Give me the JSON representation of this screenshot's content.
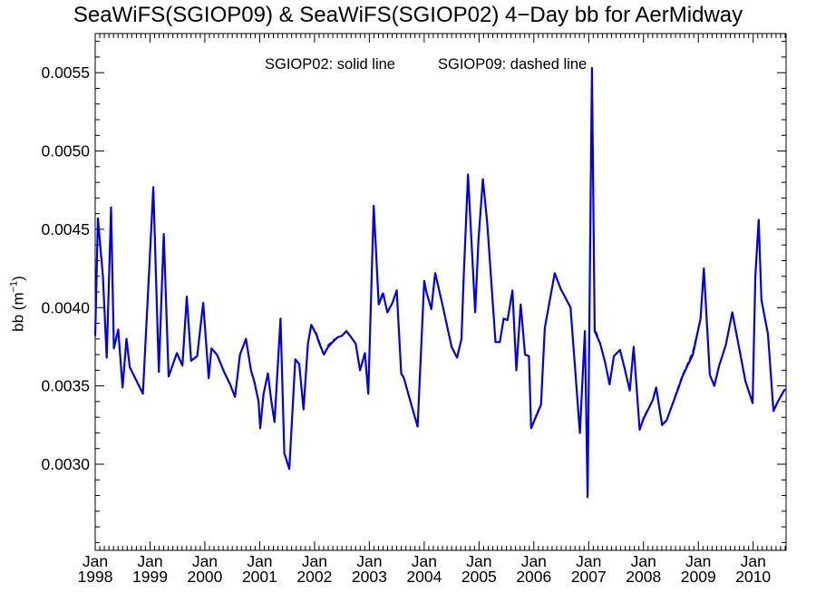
{
  "chart_data": {
    "type": "line",
    "title": "SeaWiFS(SGIOP09) & SeaWiFS(SGIOP02) 4−Day bb for AerMidway",
    "annotation_left": "SGIOP02: solid line",
    "annotation_right": "SGIOP09: dashed line",
    "ylabel_text": "bb (m",
    "ylabel_exp": "−1",
    "ylabel_close": ")",
    "xlim": [
      1998.0,
      2010.6
    ],
    "ylim": [
      0.00245,
      0.00575
    ],
    "yticks": [
      0.003,
      0.0035,
      0.004,
      0.0045,
      0.005,
      0.0055
    ],
    "ytick_labels": [
      "0.0030",
      "0.0035",
      "0.0040",
      "0.0045",
      "0.0050",
      "0.0055"
    ],
    "xtick_years": [
      1998,
      1999,
      2000,
      2001,
      2002,
      2003,
      2004,
      2005,
      2006,
      2007,
      2008,
      2009,
      2010
    ],
    "xtick_month_label": "Jan",
    "xtick_year_labels": [
      "1998",
      "1999",
      "2000",
      "2001",
      "2002",
      "2003",
      "2004",
      "2005",
      "2006",
      "2007",
      "2008",
      "2009",
      "2010"
    ],
    "colors": {
      "series": "#0000ee",
      "axis": "#000000"
    },
    "series": [
      {
        "name": "SGIOP02",
        "style": "solid",
        "x": [
          1998.0,
          1998.05,
          1998.14,
          1998.21,
          1998.29,
          1998.34,
          1998.42,
          1998.5,
          1998.57,
          1998.63,
          1998.73,
          1998.87,
          1998.99,
          1999.06,
          1999.16,
          1999.25,
          1999.34,
          1999.49,
          1999.59,
          1999.67,
          1999.75,
          1999.86,
          1999.97,
          2000.07,
          2000.12,
          2000.22,
          2000.35,
          2000.46,
          2000.55,
          2000.64,
          2000.75,
          2000.84,
          2000.9,
          2000.98,
          2001.01,
          2001.07,
          2001.15,
          2001.21,
          2001.27,
          2001.38,
          2001.45,
          2001.54,
          2001.65,
          2001.72,
          2001.8,
          2001.88,
          2001.94,
          2002.03,
          2002.09,
          2002.17,
          2002.25,
          2002.33,
          2002.42,
          2002.5,
          2002.58,
          2002.67,
          2002.75,
          2002.83,
          2002.92,
          2002.98,
          2003.08,
          2003.17,
          2003.25,
          2003.33,
          2003.42,
          2003.5,
          2003.58,
          2003.63,
          2003.75,
          2003.88,
          2004.0,
          2004.04,
          2004.13,
          2004.2,
          2004.32,
          2004.5,
          2004.6,
          2004.68,
          2004.72,
          2004.8,
          2004.93,
          2004.99,
          2005.07,
          2005.15,
          2005.3,
          2005.38,
          2005.45,
          2005.52,
          2005.61,
          2005.68,
          2005.76,
          2005.84,
          2005.91,
          2005.95,
          2006.06,
          2006.13,
          2006.2,
          2006.38,
          2006.49,
          2006.67,
          2006.84,
          2006.93,
          2006.98,
          2007.06,
          2007.11,
          2007.21,
          2007.3,
          2007.38,
          2007.46,
          2007.57,
          2007.65,
          2007.75,
          2007.82,
          2007.93,
          2008.0,
          2008.17,
          2008.23,
          2008.34,
          2008.42,
          2008.63,
          2008.71,
          2008.79,
          2008.9,
          2009.04,
          2009.1,
          2009.21,
          2009.29,
          2009.38,
          2009.5,
          2009.62,
          2009.74,
          2009.86,
          2009.99,
          2010.04,
          2010.1,
          2010.15,
          2010.27,
          2010.37,
          2010.45,
          2010.53,
          2010.58
        ],
        "y": [
          0.00382,
          0.00457,
          0.0042,
          0.00368,
          0.00464,
          0.00374,
          0.00386,
          0.00349,
          0.0038,
          0.00362,
          0.00355,
          0.00345,
          0.00428,
          0.00477,
          0.00359,
          0.00447,
          0.00356,
          0.00371,
          0.00363,
          0.00407,
          0.00366,
          0.00369,
          0.00403,
          0.00355,
          0.00374,
          0.0037,
          0.00359,
          0.00351,
          0.00343,
          0.0037,
          0.0038,
          0.0036,
          0.00353,
          0.0034,
          0.00323,
          0.00345,
          0.00358,
          0.00341,
          0.00327,
          0.00393,
          0.00307,
          0.00297,
          0.00367,
          0.00364,
          0.00335,
          0.00377,
          0.00389,
          0.00383,
          0.00377,
          0.0037,
          0.00375,
          0.00378,
          0.00381,
          0.00382,
          0.00385,
          0.00381,
          0.00377,
          0.0036,
          0.00371,
          0.00345,
          0.00465,
          0.00402,
          0.00409,
          0.00397,
          0.00403,
          0.00411,
          0.00358,
          0.00355,
          0.0034,
          0.00324,
          0.00417,
          0.0041,
          0.00399,
          0.00422,
          0.00404,
          0.00375,
          0.00368,
          0.0038,
          0.00419,
          0.00485,
          0.00397,
          0.00443,
          0.00482,
          0.00454,
          0.00378,
          0.00378,
          0.00393,
          0.00392,
          0.00411,
          0.0036,
          0.00402,
          0.0037,
          0.00369,
          0.00323,
          0.00332,
          0.00338,
          0.00387,
          0.00422,
          0.00412,
          0.004,
          0.0032,
          0.00385,
          0.00279,
          0.00553,
          0.00385,
          0.00377,
          0.00365,
          0.00351,
          0.00369,
          0.00373,
          0.00362,
          0.00347,
          0.00375,
          0.00322,
          0.00329,
          0.00341,
          0.00349,
          0.00325,
          0.00328,
          0.00348,
          0.00356,
          0.00362,
          0.0037,
          0.00393,
          0.00425,
          0.00357,
          0.0035,
          0.00363,
          0.00376,
          0.00397,
          0.00375,
          0.00353,
          0.00339,
          0.0042,
          0.00456,
          0.00405,
          0.00383,
          0.00334,
          0.0034,
          0.00345,
          0.00348
        ]
      },
      {
        "name": "SGIOP09",
        "style": "dashed",
        "x": [
          1998.0,
          1998.05,
          1998.14,
          1998.21,
          1998.29,
          1998.34,
          1998.42,
          1998.5,
          1998.57,
          1998.63,
          1998.73,
          1998.87,
          1998.99,
          1999.06,
          1999.16,
          1999.25,
          1999.34,
          1999.49,
          1999.59,
          1999.67,
          1999.75,
          1999.86,
          1999.97,
          2000.07,
          2000.12,
          2000.22,
          2000.35,
          2000.46,
          2000.55,
          2000.64,
          2000.75,
          2000.84,
          2000.9,
          2000.98,
          2001.01,
          2001.07,
          2001.15,
          2001.21,
          2001.27,
          2001.38,
          2001.45,
          2001.54,
          2001.65,
          2001.72,
          2001.8,
          2001.88,
          2001.94,
          2002.03,
          2002.09,
          2002.17,
          2002.25,
          2002.33,
          2002.42,
          2002.5,
          2002.58,
          2002.67,
          2002.75,
          2002.83,
          2002.92,
          2002.98,
          2003.08,
          2003.17,
          2003.25,
          2003.33,
          2003.42,
          2003.5,
          2003.58,
          2003.63,
          2003.75,
          2003.88,
          2004.0,
          2004.04,
          2004.13,
          2004.2,
          2004.32,
          2004.5,
          2004.6,
          2004.68,
          2004.72,
          2004.8,
          2004.93,
          2004.99,
          2005.07,
          2005.15,
          2005.3,
          2005.38,
          2005.45,
          2005.52,
          2005.61,
          2005.68,
          2005.76,
          2005.84,
          2005.91,
          2005.95,
          2006.06,
          2006.13,
          2006.2,
          2006.38,
          2006.49,
          2006.67,
          2006.84,
          2006.93,
          2006.98,
          2007.06,
          2007.11,
          2007.21,
          2007.3,
          2007.38,
          2007.46,
          2007.57,
          2007.65,
          2007.75,
          2007.82,
          2007.93,
          2008.0,
          2008.17,
          2008.23,
          2008.34,
          2008.42,
          2008.63,
          2008.71,
          2008.79,
          2008.9,
          2009.04,
          2009.1,
          2009.21,
          2009.29,
          2009.38,
          2009.5,
          2009.62,
          2009.74,
          2009.86,
          2009.99,
          2010.04,
          2010.1,
          2010.15,
          2010.27,
          2010.37,
          2010.45,
          2010.53,
          2010.58
        ],
        "y": [
          0.00382,
          0.00457,
          0.0042,
          0.00368,
          0.00464,
          0.00374,
          0.00386,
          0.00349,
          0.0038,
          0.00362,
          0.00355,
          0.00345,
          0.00428,
          0.00477,
          0.00359,
          0.00447,
          0.00356,
          0.00371,
          0.00363,
          0.00407,
          0.00366,
          0.00369,
          0.00403,
          0.00355,
          0.00374,
          0.0037,
          0.00359,
          0.00351,
          0.00343,
          0.0037,
          0.0038,
          0.0036,
          0.00353,
          0.0034,
          0.00323,
          0.00345,
          0.00358,
          0.00341,
          0.00327,
          0.00393,
          0.00307,
          0.00297,
          0.00367,
          0.00364,
          0.00335,
          0.00377,
          0.00389,
          0.00384,
          0.00378,
          0.0037,
          0.00376,
          0.00379,
          0.00381,
          0.00382,
          0.00385,
          0.00381,
          0.00377,
          0.0036,
          0.00371,
          0.00345,
          0.00465,
          0.00403,
          0.0041,
          0.00397,
          0.00403,
          0.00411,
          0.00358,
          0.00355,
          0.0034,
          0.00324,
          0.00417,
          0.0041,
          0.00399,
          0.00422,
          0.00404,
          0.00375,
          0.00368,
          0.0038,
          0.00419,
          0.00485,
          0.00397,
          0.00443,
          0.00482,
          0.00454,
          0.00378,
          0.00378,
          0.00393,
          0.00392,
          0.00411,
          0.0036,
          0.00402,
          0.0037,
          0.00369,
          0.00323,
          0.00333,
          0.00338,
          0.00387,
          0.00422,
          0.00412,
          0.004,
          0.0032,
          0.00385,
          0.00279,
          0.00553,
          0.00387,
          0.00377,
          0.00365,
          0.00351,
          0.00369,
          0.00373,
          0.00362,
          0.00347,
          0.00375,
          0.00322,
          0.0033,
          0.00341,
          0.00349,
          0.00325,
          0.00328,
          0.00349,
          0.00357,
          0.00363,
          0.00372,
          0.00393,
          0.00425,
          0.00357,
          0.0035,
          0.00363,
          0.00376,
          0.00397,
          0.00375,
          0.00353,
          0.00339,
          0.0042,
          0.00456,
          0.00405,
          0.00383,
          0.00334,
          0.0034,
          0.00345,
          0.00348
        ]
      }
    ]
  }
}
